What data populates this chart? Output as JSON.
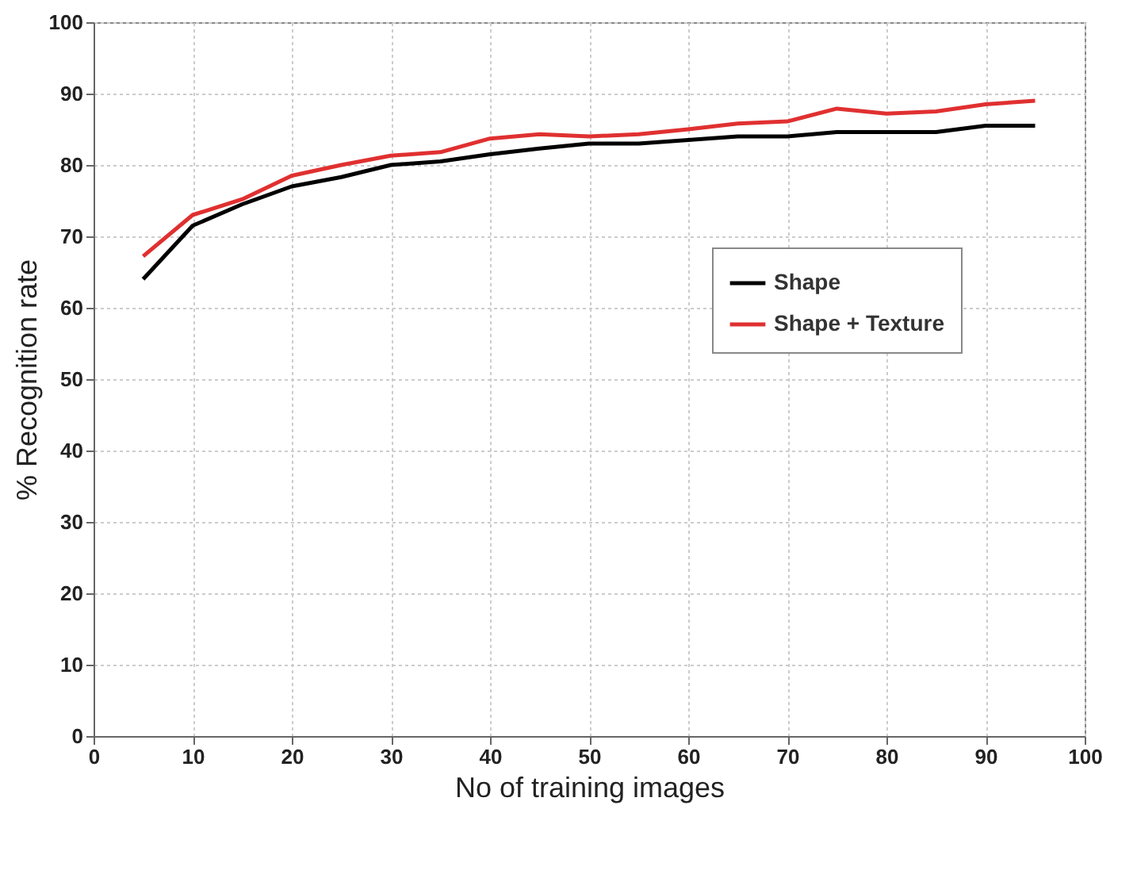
{
  "chart_data": {
    "type": "line",
    "xlabel": "No of training images",
    "ylabel": "% Recognition rate",
    "x": [
      5,
      10,
      15,
      20,
      25,
      30,
      35,
      40,
      45,
      50,
      55,
      60,
      65,
      70,
      75,
      80,
      85,
      90,
      95
    ],
    "series": [
      {
        "name": "Shape",
        "color": "#000000",
        "values": [
          64,
          71.5,
          74.5,
          77,
          78.3,
          80,
          80.5,
          81.5,
          82.3,
          83,
          83,
          83.5,
          84,
          84,
          84.6,
          84.6,
          84.6,
          85.5,
          85.5
        ]
      },
      {
        "name": "Shape + Texture",
        "color": "#e03030",
        "values": [
          67.2,
          73,
          75.2,
          78.5,
          80,
          81.3,
          81.8,
          83.7,
          84.3,
          84,
          84.3,
          85,
          85.8,
          86.1,
          87.9,
          87.2,
          87.5,
          88.5,
          89
        ]
      }
    ],
    "xlim": [
      0,
      100
    ],
    "xticks": [
      0,
      10,
      20,
      30,
      40,
      50,
      60,
      70,
      80,
      90,
      100
    ],
    "ylim": [
      0,
      100
    ],
    "yticks": [
      0,
      10,
      20,
      30,
      40,
      50,
      60,
      70,
      80,
      90,
      100
    ],
    "grid": true,
    "legend": "right",
    "marker": "none",
    "line_style": "solid"
  }
}
